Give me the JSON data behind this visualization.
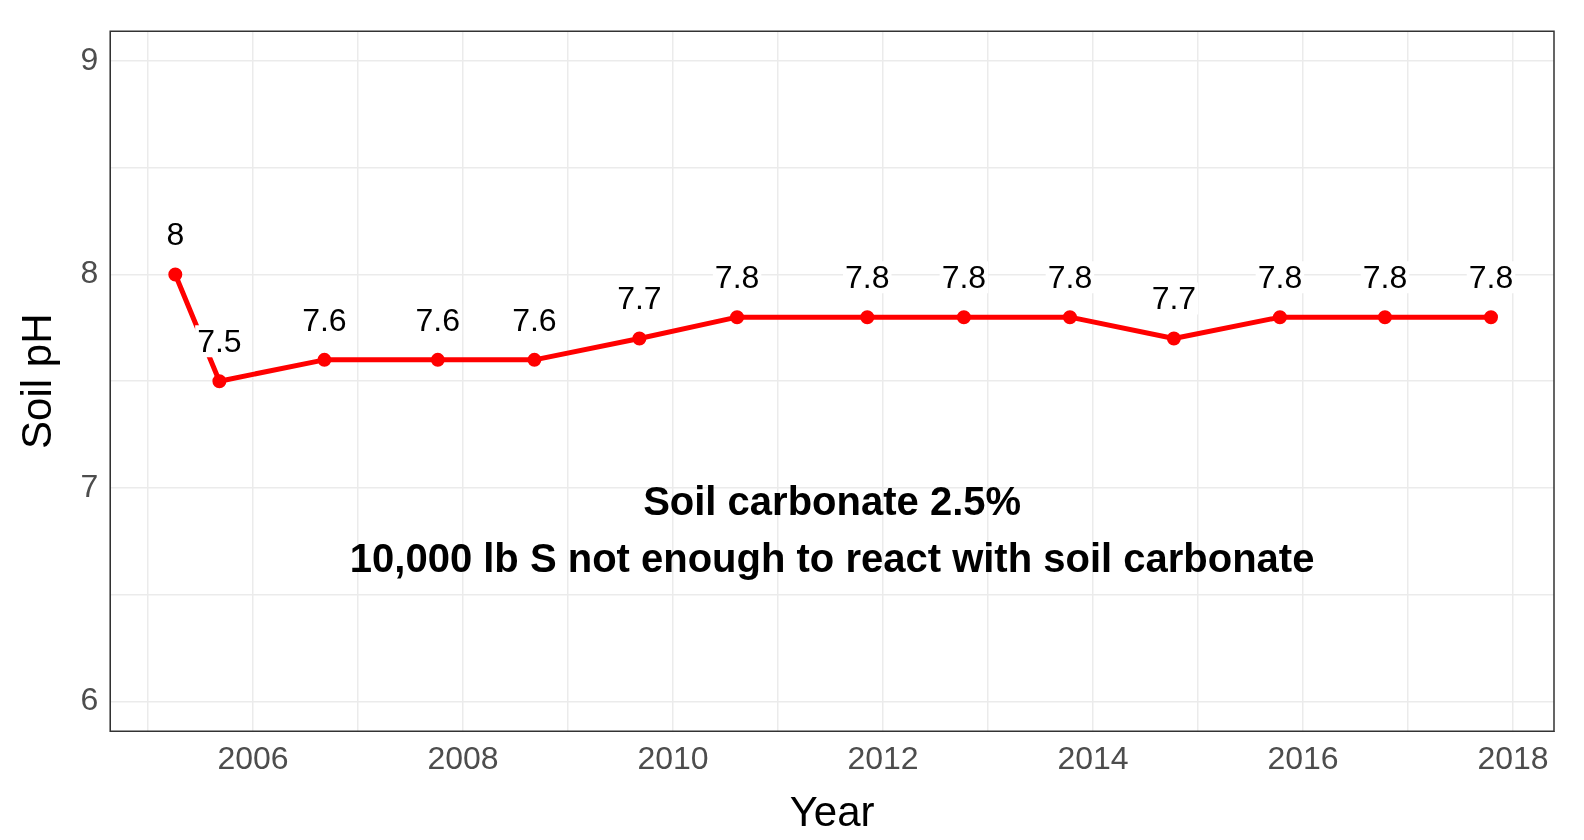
{
  "chart_data": {
    "type": "line",
    "xlabel": "Year",
    "ylabel": "Soil pH",
    "x": [
      2005.26,
      2005.68,
      2006.68,
      2007.76,
      2008.68,
      2009.68,
      2010.61,
      2011.85,
      2012.77,
      2013.78,
      2014.77,
      2015.78,
      2016.78,
      2017.79
    ],
    "series": [
      {
        "color": "#ff0000",
        "values": [
          8,
          7.5,
          7.6,
          7.6,
          7.6,
          7.7,
          7.8,
          7.8,
          7.8,
          7.8,
          7.7,
          7.8,
          7.8,
          7.8
        ]
      }
    ],
    "data_labels": true,
    "marker": "circle",
    "line_style": "solid",
    "grid": true,
    "legend": false,
    "xlim": [
      2004.64,
      2018.39
    ],
    "xticks": [
      {
        "value": 2005,
        "label": null
      },
      2006,
      {
        "value": 2007,
        "label": null
      },
      2008,
      {
        "value": 2009,
        "label": null
      },
      2010,
      {
        "value": 2011,
        "label": null
      },
      2012,
      {
        "value": 2013,
        "label": null
      },
      2014,
      {
        "value": 2015,
        "label": null
      },
      2016,
      {
        "value": 2017,
        "label": null
      },
      2018
    ],
    "ylim": [
      5.86,
      9.14
    ],
    "yticks": [
      6,
      {
        "value": 6.5,
        "label": null
      },
      7,
      {
        "value": 7.5,
        "label": null
      },
      8,
      {
        "value": 8.5,
        "label": null
      },
      9
    ],
    "annotations": [
      "Soil carbonate 2.5%",
      "10,000 lb S not enough to react with soil carbonate"
    ]
  }
}
